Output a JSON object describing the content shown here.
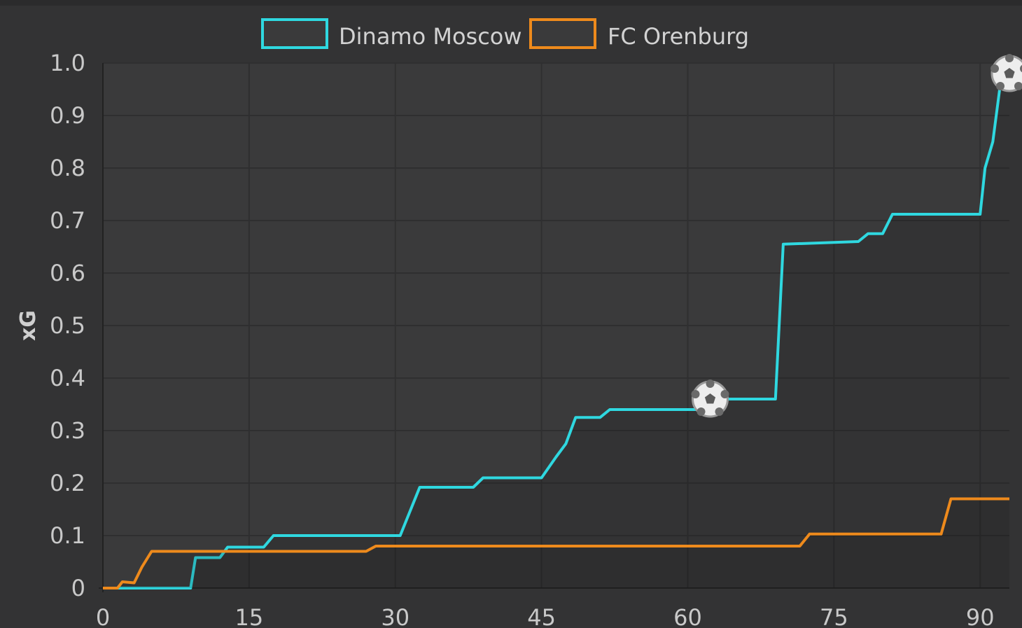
{
  "chart_data": {
    "type": "line",
    "title": "",
    "xlabel": "",
    "ylabel": "xG",
    "xlim": [
      0,
      93
    ],
    "ylim": [
      0,
      1.0
    ],
    "x_ticks": [
      "0",
      "15",
      "30",
      "45",
      "60",
      "75",
      "90"
    ],
    "y_ticks": [
      "0",
      "0.1",
      "0.2",
      "0.3",
      "0.4",
      "0.5",
      "0.6",
      "0.7",
      "0.8",
      "0.9",
      "1.0"
    ],
    "grid": true,
    "legend_position": "top-center",
    "series": [
      {
        "name": "Dinamo Moscow",
        "color": "#2fd8e0",
        "step_points": [
          [
            0,
            0
          ],
          [
            9,
            0
          ],
          [
            9.5,
            0.058
          ],
          [
            12,
            0.058
          ],
          [
            12.8,
            0.078
          ],
          [
            16.5,
            0.078
          ],
          [
            17.5,
            0.1
          ],
          [
            30.5,
            0.1
          ],
          [
            32.5,
            0.192
          ],
          [
            38,
            0.192
          ],
          [
            39,
            0.21
          ],
          [
            45,
            0.21
          ],
          [
            46.5,
            0.25
          ],
          [
            47.5,
            0.275
          ],
          [
            48.5,
            0.325
          ],
          [
            51,
            0.325
          ],
          [
            52,
            0.34
          ],
          [
            61,
            0.34
          ],
          [
            61.5,
            0.36
          ],
          [
            69,
            0.36
          ],
          [
            69.8,
            0.655
          ],
          [
            77.5,
            0.66
          ],
          [
            78.5,
            0.675
          ],
          [
            80,
            0.675
          ],
          [
            81,
            0.712
          ],
          [
            90,
            0.712
          ],
          [
            90.5,
            0.8
          ],
          [
            91.3,
            0.85
          ],
          [
            92,
            0.95
          ],
          [
            93,
            0.97
          ]
        ],
        "goals": [
          [
            62.3,
            0.36
          ],
          [
            93,
            0.98
          ]
        ]
      },
      {
        "name": "FC Orenburg",
        "color": "#ee8a1c",
        "step_points": [
          [
            0,
            0
          ],
          [
            1.5,
            0
          ],
          [
            2,
            0.012
          ],
          [
            3.2,
            0.01
          ],
          [
            4,
            0.04
          ],
          [
            5,
            0.07
          ],
          [
            27,
            0.07
          ],
          [
            28,
            0.08
          ],
          [
            71.5,
            0.08
          ],
          [
            72.5,
            0.103
          ],
          [
            86,
            0.103
          ],
          [
            87,
            0.17
          ],
          [
            93,
            0.17
          ]
        ],
        "goals": []
      }
    ]
  }
}
